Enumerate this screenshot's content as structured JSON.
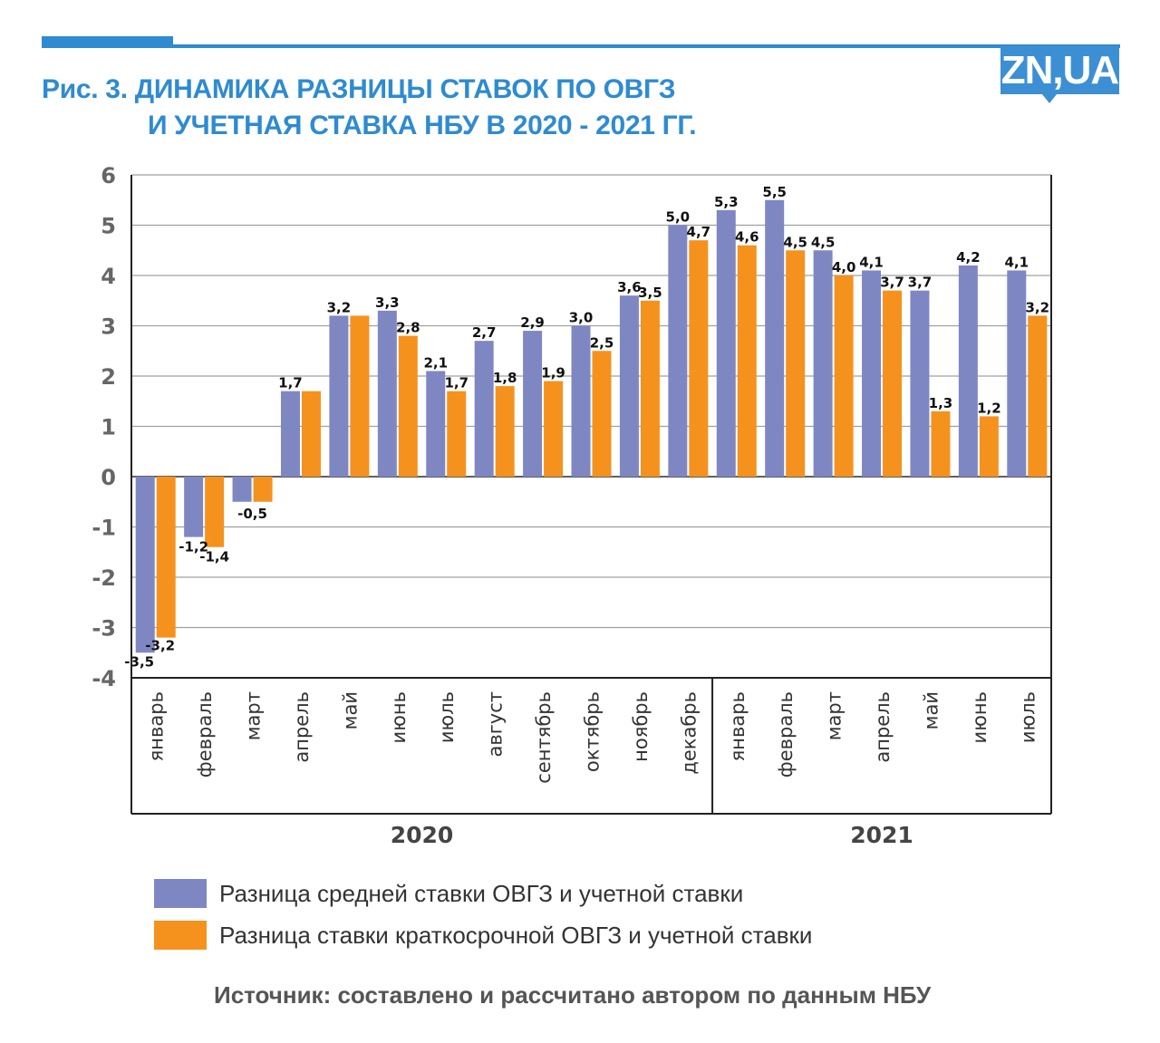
{
  "header": {
    "title_line1": "Рис. 3. ДИНАМИКА РАЗНИЦЫ СТАВОК ПО ОВГЗ",
    "title_line2": "И УЧЕТНАЯ СТАВКА НБУ В 2020 - 2021 ГГ.",
    "logo": "ZN,UA",
    "brand_color": "#2e8bd0"
  },
  "chart_data": {
    "type": "bar",
    "title": "Рис. 3. ДИНАМИКА РАЗНИЦЫ СТАВОК ПО ОВГЗ И УЧЕТНАЯ СТАВКА НБУ В 2020 - 2021 ГГ.",
    "xlabel": "",
    "ylabel": "",
    "ylim": [
      -4,
      6
    ],
    "yticks": [
      6,
      5,
      4,
      3,
      2,
      1,
      0,
      -1,
      -2,
      -3,
      -4
    ],
    "grid": true,
    "legend_position": "bottom",
    "categories": [
      "январь",
      "февраль",
      "март",
      "апрель",
      "май",
      "июнь",
      "июль",
      "август",
      "сентябрь",
      "октябрь",
      "ноябрь",
      "декабрь",
      "январь",
      "февраль",
      "март",
      "апрель",
      "май",
      "июнь",
      "июль"
    ],
    "groups": [
      {
        "label": "2020",
        "count": 12
      },
      {
        "label": "2021",
        "count": 7
      }
    ],
    "series": [
      {
        "name": "Разница средней ставки ОВГЗ и учетной ставки",
        "color": "#7f87c3",
        "values": [
          -3.5,
          -1.2,
          -0.5,
          1.7,
          3.2,
          3.3,
          2.1,
          2.7,
          2.9,
          3.0,
          3.6,
          5.0,
          5.3,
          5.5,
          4.5,
          4.1,
          3.7,
          4.2,
          4.1
        ],
        "labels": [
          "-3,5",
          "-1,2",
          "-0,5",
          "1,7",
          "3,2",
          "3,3",
          "2,1",
          "2,7",
          "2,9",
          "3,0",
          "3,6",
          "5,0",
          "5,3",
          "5,5",
          "4,5",
          "4,1",
          "3,7",
          "4,2",
          "4,1"
        ]
      },
      {
        "name": "Разница ставки краткосрочной ОВГЗ и учетной ставки",
        "color": "#f5921e",
        "values": [
          -3.2,
          -1.4,
          -0.5,
          1.7,
          3.2,
          2.8,
          1.7,
          1.8,
          1.9,
          2.5,
          3.5,
          4.7,
          4.6,
          4.5,
          4.0,
          3.7,
          1.3,
          1.2,
          3.2
        ],
        "labels": [
          "-3,2",
          "-1,4",
          "",
          "",
          "",
          "2,8",
          "1,7",
          "1,8",
          "1,9",
          "2,5",
          "3,5",
          "4,7",
          "4,6",
          "4,5",
          "4,0",
          "3,7",
          "1,3",
          "1,2",
          "3,2"
        ]
      }
    ]
  },
  "legend": [
    {
      "label": "Разница средней ставки ОВГЗ и учетной ставки",
      "color": "#7f87c3"
    },
    {
      "label": "Разница ставки краткосрочной ОВГЗ и учетной ставки",
      "color": "#f5921e"
    }
  ],
  "source": "Источник: составлено и рассчитано автором по данным НБУ"
}
